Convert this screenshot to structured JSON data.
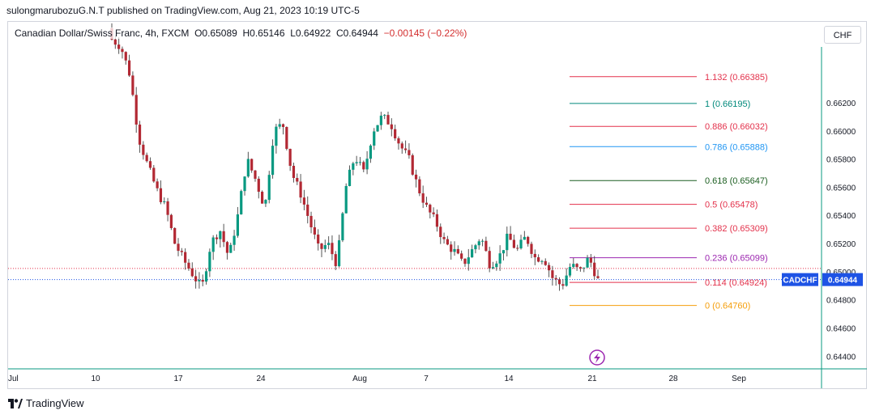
{
  "publish_line": "sulongmarubozuG.N.T published on TradingView.com, Aug 21, 2023 10:19 UTC-5",
  "legend": {
    "symbol": "Canadian Dollar/Swiss Franc, 4h, FXCM",
    "o": "O0.65089",
    "h": "H0.65146",
    "l": "L0.64922",
    "c": "C0.64944",
    "chg": "−0.00145 (−0.22%)"
  },
  "currency_button": "CHF",
  "brand": "TradingView",
  "colors": {
    "up": "#089981",
    "down": "#b22833",
    "wick": "#555555",
    "price_tag": "#1e53e5",
    "fib_1132": "#e3314b",
    "fib_1": "#00897b",
    "fib_0886": "#e3314b",
    "fib_0786": "#2196f3",
    "fib_0618": "#1b5e20",
    "fib_05": "#e3314b",
    "fib_0382": "#e3314b",
    "fib_0236": "#9c27b0",
    "fib_0114": "#e3314b",
    "fib_0": "#f59e0b"
  },
  "chart_data": {
    "type": "candlestick",
    "symbol_tag": "CADCHF",
    "last_price": "0.64944",
    "ylim": [
      0.6431,
      0.6678
    ],
    "y_ticks": [
      "0.66200",
      "0.66000",
      "0.65800",
      "0.65600",
      "0.65400",
      "0.65200",
      "0.65000",
      "0.64800",
      "0.64600",
      "0.64400"
    ],
    "x_ticks": [
      "Jul",
      "10",
      "17",
      "24",
      "Aug",
      "7",
      "14",
      "21",
      "28",
      "Sep"
    ],
    "fib_levels": [
      {
        "label": "1.132 (0.66385)",
        "price": 0.66385,
        "color": "#e3314b"
      },
      {
        "label": "1 (0.66195)",
        "price": 0.66195,
        "color": "#00897b"
      },
      {
        "label": "0.886 (0.66032)",
        "price": 0.66032,
        "color": "#e3314b"
      },
      {
        "label": "0.786 (0.65888)",
        "price": 0.65888,
        "color": "#2196f3"
      },
      {
        "label": "0.618 (0.65647)",
        "price": 0.65647,
        "color": "#1b5e20"
      },
      {
        "label": "0.5 (0.65478)",
        "price": 0.65478,
        "color": "#e3314b"
      },
      {
        "label": "0.382 (0.65309)",
        "price": 0.65309,
        "color": "#e3314b"
      },
      {
        "label": "0.236 (0.65099)",
        "price": 0.65099,
        "color": "#9c27b0"
      },
      {
        "label": "0.114 (0.64924)",
        "price": 0.64924,
        "color": "#e3314b"
      },
      {
        "label": "0 (0.64760)",
        "price": 0.6476,
        "color": "#f59e0b"
      }
    ],
    "close_path": [
      0.6665,
      0.666,
      0.664,
      0.6595,
      0.6575,
      0.6558,
      0.6545,
      0.652,
      0.6508,
      0.6498,
      0.6488,
      0.652,
      0.653,
      0.651,
      0.654,
      0.658,
      0.6565,
      0.6545,
      0.66,
      0.6605,
      0.657,
      0.6555,
      0.6535,
      0.6515,
      0.652,
      0.6505,
      0.656,
      0.6582,
      0.657,
      0.66,
      0.661,
      0.6605,
      0.659,
      0.658,
      0.656,
      0.6545,
      0.6535,
      0.652,
      0.6515,
      0.6505,
      0.6515,
      0.6525,
      0.6505,
      0.651,
      0.6525,
      0.6515,
      0.6525,
      0.651,
      0.651,
      0.6495,
      0.649,
      0.6505,
      0.65,
      0.651,
      0.6494
    ]
  }
}
